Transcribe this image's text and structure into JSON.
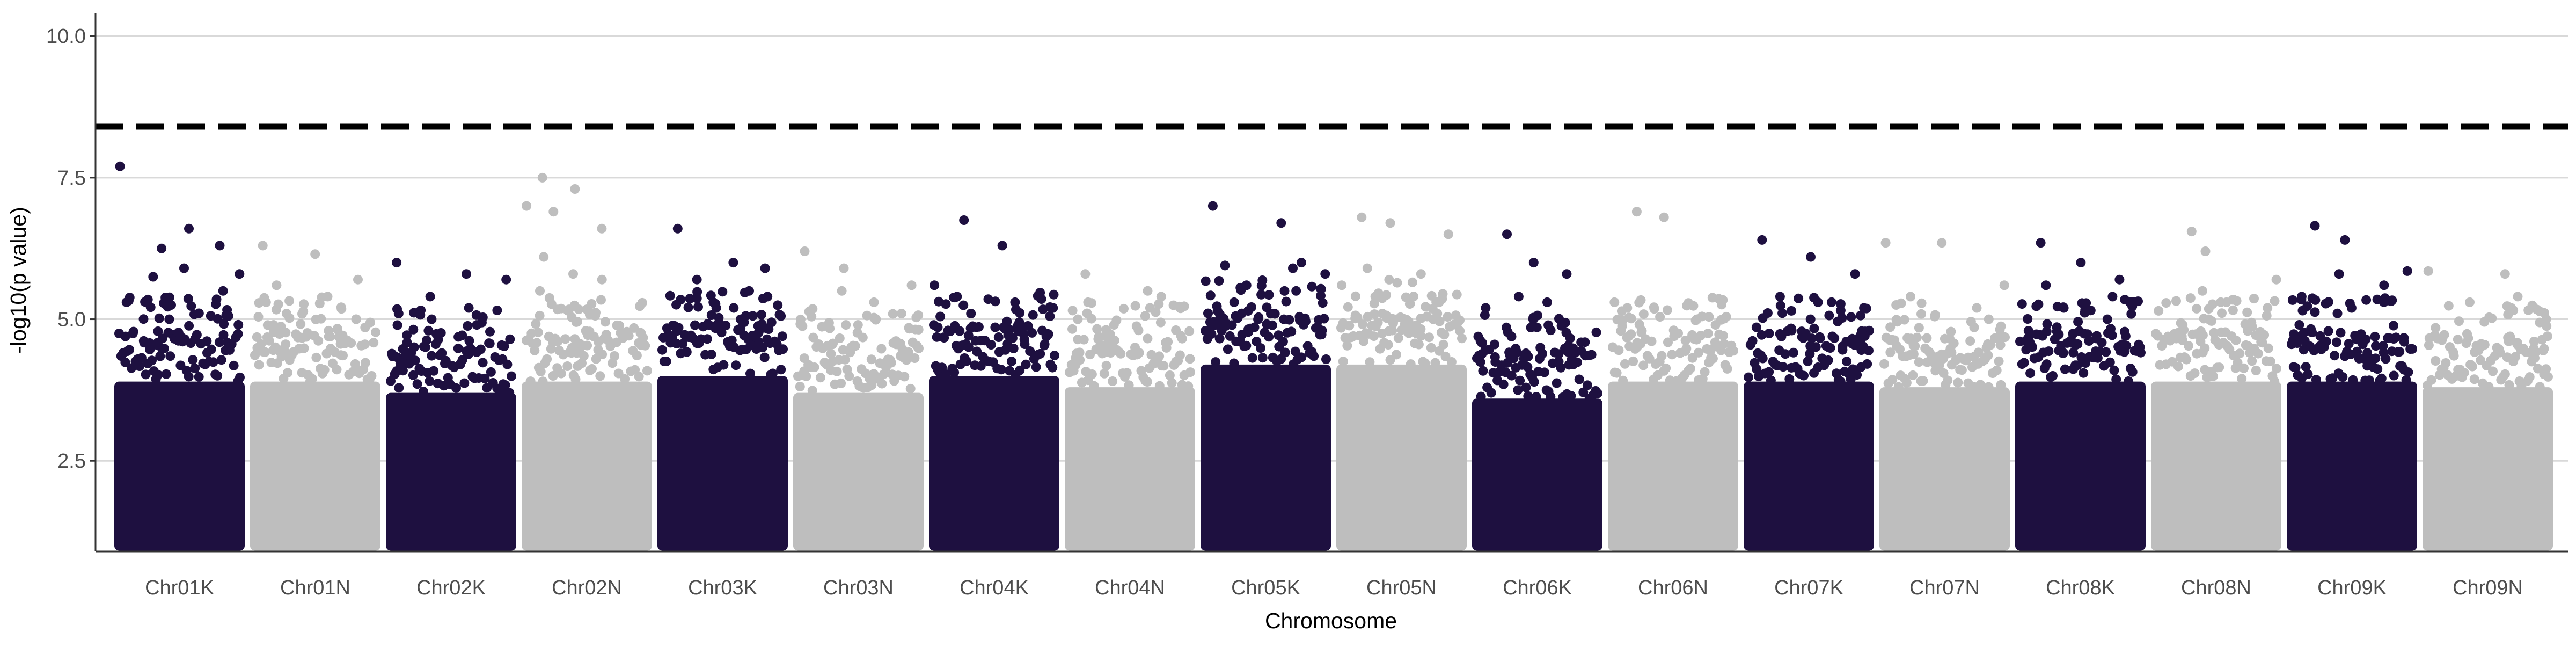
{
  "chart_data": {
    "type": "scatter",
    "subtype": "manhattan",
    "title": "",
    "xlabel": "Chromosome",
    "ylabel": "-log10(p value)",
    "ylim": [
      0.9,
      10.4
    ],
    "y_ticks": [
      2.5,
      5.0,
      7.5,
      10.0
    ],
    "y_tick_labels": [
      "2.5",
      "5.0",
      "7.5",
      "10.0"
    ],
    "grid": "horizontal major",
    "legend": "none",
    "threshold": {
      "value": 8.4,
      "style": "dashed",
      "color": "#000000"
    },
    "colors": {
      "odd": "#1e1040",
      "even": "#bebebe",
      "grid": "#d9d9d9",
      "axis": "#333333"
    },
    "points_floor": 1.0,
    "chromosomes": [
      {
        "name": "Chr01K",
        "band_top": 3.9,
        "color": "#1e1040",
        "peaks": [
          7.7,
          6.6,
          6.3,
          6.25,
          5.9,
          5.8,
          5.75,
          5.5,
          5.3,
          5.0
        ]
      },
      {
        "name": "Chr01N",
        "band_top": 3.9,
        "color": "#bebebe",
        "peaks": [
          6.3,
          6.15,
          5.7,
          5.6,
          5.4,
          5.3,
          5.1,
          5.0,
          4.9
        ]
      },
      {
        "name": "Chr02K",
        "band_top": 3.7,
        "color": "#1e1040",
        "peaks": [
          6.0,
          5.8,
          5.7,
          5.4,
          5.2,
          5.1,
          5.0,
          4.9
        ]
      },
      {
        "name": "Chr02N",
        "band_top": 3.9,
        "color": "#bebebe",
        "peaks": [
          7.5,
          7.3,
          7.0,
          6.9,
          6.6,
          6.1,
          5.8,
          5.7,
          5.5
        ]
      },
      {
        "name": "Chr03K",
        "band_top": 4.0,
        "color": "#1e1040",
        "peaks": [
          6.6,
          6.0,
          5.9,
          5.7,
          5.5,
          5.4,
          5.3,
          5.2
        ]
      },
      {
        "name": "Chr03N",
        "band_top": 3.7,
        "color": "#bebebe",
        "peaks": [
          6.2,
          5.9,
          5.6,
          5.5,
          5.3,
          5.1,
          4.9
        ]
      },
      {
        "name": "Chr04K",
        "band_top": 4.0,
        "color": "#1e1040",
        "peaks": [
          6.75,
          6.3,
          5.6,
          5.4,
          5.3,
          5.2,
          5.1
        ]
      },
      {
        "name": "Chr04N",
        "band_top": 3.8,
        "color": "#bebebe",
        "peaks": [
          5.8,
          5.5,
          5.4,
          5.3,
          5.2,
          5.0,
          4.9
        ]
      },
      {
        "name": "Chr05K",
        "band_top": 4.2,
        "color": "#1e1040",
        "peaks": [
          7.0,
          6.7,
          6.0,
          5.95,
          5.9,
          5.8,
          5.6,
          5.5,
          5.3
        ]
      },
      {
        "name": "Chr05N",
        "band_top": 4.2,
        "color": "#bebebe",
        "peaks": [
          6.8,
          6.7,
          6.5,
          5.9,
          5.8,
          5.6,
          5.4,
          5.3
        ]
      },
      {
        "name": "Chr06K",
        "band_top": 3.6,
        "color": "#1e1040",
        "peaks": [
          6.5,
          6.0,
          5.8,
          5.4,
          5.3,
          5.2,
          5.0
        ]
      },
      {
        "name": "Chr06N",
        "band_top": 3.9,
        "color": "#bebebe",
        "peaks": [
          6.9,
          6.8,
          5.3,
          5.2,
          5.0,
          4.9,
          4.8
        ]
      },
      {
        "name": "Chr07K",
        "band_top": 3.9,
        "color": "#1e1040",
        "peaks": [
          6.4,
          6.1,
          5.8,
          5.4,
          5.3,
          5.2,
          5.0
        ]
      },
      {
        "name": "Chr07N",
        "band_top": 3.8,
        "color": "#bebebe",
        "peaks": [
          6.35,
          6.35,
          5.6,
          5.4,
          5.2,
          5.0
        ]
      },
      {
        "name": "Chr08K",
        "band_top": 3.9,
        "color": "#1e1040",
        "peaks": [
          6.35,
          6.0,
          5.7,
          5.6,
          5.4,
          5.3,
          5.2,
          5.0
        ]
      },
      {
        "name": "Chr08N",
        "band_top": 3.9,
        "color": "#bebebe",
        "peaks": [
          6.55,
          6.2,
          5.7,
          5.5,
          5.3,
          5.2,
          5.0
        ]
      },
      {
        "name": "Chr09K",
        "band_top": 3.9,
        "color": "#1e1040",
        "peaks": [
          6.65,
          6.4,
          5.85,
          5.8,
          5.6,
          5.4,
          5.2
        ]
      },
      {
        "name": "Chr09N",
        "band_top": 3.8,
        "color": "#bebebe",
        "peaks": [
          5.85,
          5.8,
          5.4,
          5.3,
          5.2,
          5.0
        ]
      }
    ]
  }
}
